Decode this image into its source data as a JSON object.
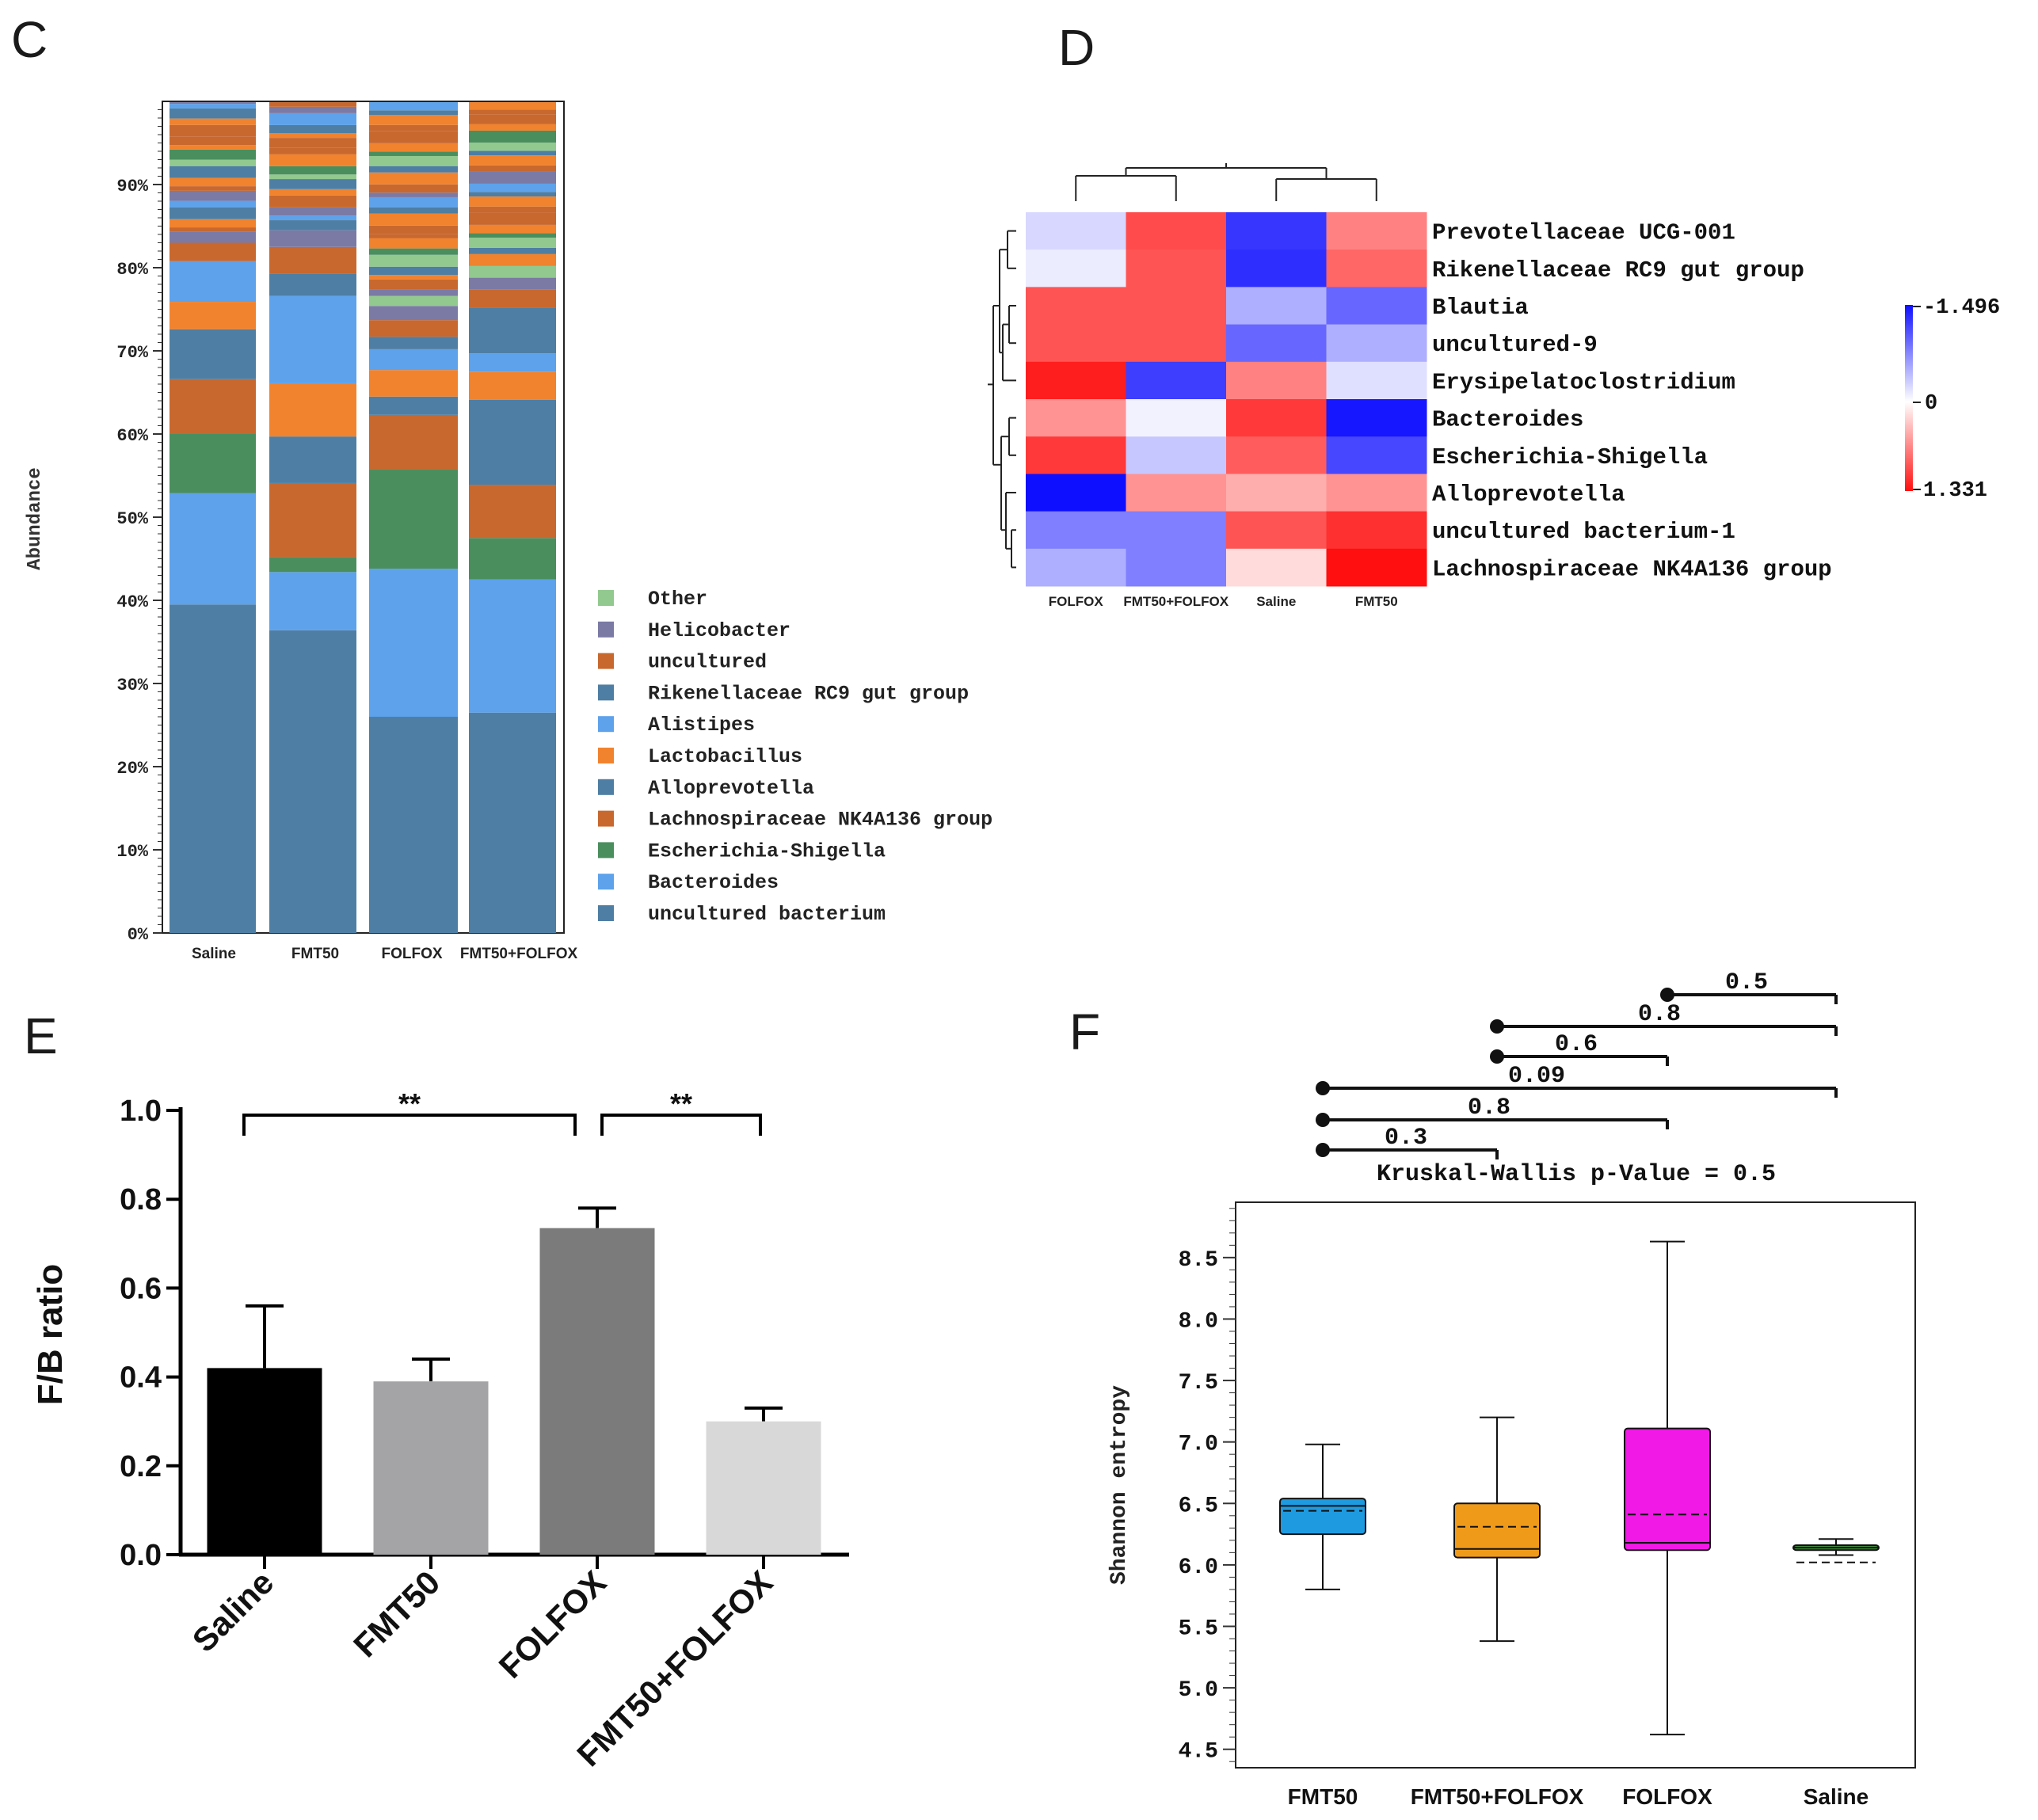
{
  "panels": {
    "c": "C",
    "d": "D",
    "e": "E",
    "f": "F"
  },
  "chart_data": [
    {
      "id": "C",
      "type": "bar",
      "stacked": true,
      "ylabel": "Abundance",
      "ylim": [
        0,
        100
      ],
      "ytick_labels": [
        "0%",
        "10%",
        "20%",
        "30%",
        "40%",
        "50%",
        "60%",
        "70%",
        "80%",
        "90%"
      ],
      "ytick_values": [
        0,
        10,
        20,
        30,
        40,
        50,
        60,
        70,
        80,
        90
      ],
      "categories": [
        "Saline",
        "FMT50",
        "FOLFOX",
        "FMT50+FOLFOX"
      ],
      "series": [
        {
          "name": "uncultured bacterium",
          "color": "#4e7ea3",
          "values": [
            39.5,
            36.4,
            26.0,
            26.5
          ]
        },
        {
          "name": "Bacteroides",
          "color": "#5da2ea",
          "values": [
            13.4,
            7.0,
            17.8,
            16.0
          ]
        },
        {
          "name": "Escherichia-Shigella",
          "color": "#4a8e5e",
          "values": [
            7.1,
            1.8,
            12.0,
            5.0
          ]
        },
        {
          "name": "Lachnospiraceae NK4A136 group",
          "color": "#c8682e",
          "values": [
            6.6,
            8.9,
            6.5,
            6.4
          ]
        },
        {
          "name": "Alloprevotella",
          "color": "#4e7ea3",
          "values": [
            6.0,
            5.6,
            2.2,
            10.2
          ]
        },
        {
          "name": "Lactobacillus",
          "color": "#f1832e",
          "values": [
            3.3,
            6.4,
            3.2,
            3.4
          ]
        },
        {
          "name": "Alistipes",
          "color": "#5da2ea",
          "values": [
            4.9,
            10.5,
            2.5,
            2.2
          ]
        },
        {
          "name": "Rikenellaceae RC9 gut group",
          "color": "#4e7ea3",
          "values": [
            0,
            2.7,
            1.5,
            5.5
          ]
        },
        {
          "name": "uncultured",
          "color": "#c8682e",
          "values": [
            2.2,
            3.2,
            2.0,
            2.2
          ]
        },
        {
          "name": "Helicobacter",
          "color": "#7b7aa5",
          "values": [
            1.3,
            2.0,
            1.7,
            1.4
          ]
        },
        {
          "name": "Other",
          "color": "#92c98f",
          "values": [
            0,
            0,
            1.2,
            1.4
          ]
        }
      ],
      "legend": [
        "Other",
        "Helicobacter",
        "uncultured",
        "Rikenellaceae RC9 gut group",
        "Alistipes",
        "Lactobacillus",
        "Alloprevotella",
        "Lachnospiraceae NK4A136 group",
        "Escherichia-Shigella",
        "Bacteroides",
        "uncultured bacterium"
      ]
    },
    {
      "id": "D",
      "type": "heatmap",
      "columns": [
        "FOLFOX",
        "FMT50+FOLFOX",
        "Saline",
        "FMT50"
      ],
      "rows": [
        "Prevotellaceae UCG-001",
        "Rikenellaceae RC9 gut group",
        "Blautia",
        "uncultured-9",
        "Erysipelatoclostridium",
        "Bacteroides",
        "Escherichia-Shigella",
        "Alloprevotella",
        "uncultured bacterium-1",
        "Lachnospiraceae NK4A136 group"
      ],
      "values": [
        [
          0.25,
          -1.0,
          1.25,
          -0.7
        ],
        [
          0.12,
          -0.95,
          1.3,
          -0.85
        ],
        [
          -0.95,
          -0.95,
          0.5,
          0.95
        ],
        [
          -0.95,
          -0.95,
          0.95,
          0.5
        ],
        [
          -1.25,
          1.2,
          -0.7,
          0.2
        ],
        [
          -0.6,
          0.08,
          -1.1,
          1.45
        ],
        [
          -1.1,
          0.35,
          -0.9,
          1.15
        ],
        [
          1.5,
          -0.6,
          -0.45,
          -0.6
        ],
        [
          0.8,
          0.8,
          -0.95,
          -1.15
        ],
        [
          0.5,
          0.8,
          -0.2,
          -1.33
        ]
      ],
      "scale": {
        "max_label": "1.496",
        "mid_label": "0",
        "min_label": "1.331",
        "max": 1.496,
        "min": -1.331
      }
    },
    {
      "id": "E",
      "type": "bar",
      "ylabel": "F/B ratio",
      "ylim": [
        0,
        1.0
      ],
      "ytick_labels": [
        "0.0",
        "0.2",
        "0.4",
        "0.6",
        "0.8",
        "1.0"
      ],
      "ytick_values": [
        0,
        0.2,
        0.4,
        0.6,
        0.8,
        1.0
      ],
      "categories": [
        "Saline",
        "FMT50",
        "FOLFOX",
        "FMT50+FOLFOX"
      ],
      "values": [
        0.42,
        0.39,
        0.735,
        0.3
      ],
      "errors": [
        0.14,
        0.05,
        0.045,
        0.03
      ],
      "colors": [
        "#000000",
        "#a4a4a6",
        "#7b7b7b",
        "#d8d8d8"
      ],
      "significance": [
        {
          "from": 0,
          "to": 2,
          "label": "**"
        },
        {
          "from": 2,
          "to": 3,
          "label": "**"
        }
      ]
    },
    {
      "id": "F",
      "type": "box",
      "title": "Kruskal-Wallis p-Value = 0.5",
      "ylabel": "Shannon entropy",
      "ylim": [
        4.35,
        8.95
      ],
      "ytick_labels": [
        "4.5",
        "5.0",
        "5.5",
        "6.0",
        "6.5",
        "7.0",
        "7.5",
        "8.0",
        "8.5"
      ],
      "ytick_values": [
        4.5,
        5.0,
        5.5,
        6.0,
        6.5,
        7.0,
        7.5,
        8.0,
        8.5
      ],
      "categories": [
        "FMT50",
        "FMT50+FOLFOX",
        "FOLFOX",
        "Saline"
      ],
      "boxes": [
        {
          "min": 5.8,
          "q1": 6.25,
          "median": 6.48,
          "mean": 6.44,
          "q3": 6.54,
          "max": 6.98,
          "color": "#1e9ae0"
        },
        {
          "min": 5.38,
          "q1": 6.06,
          "median": 6.13,
          "mean": 6.31,
          "q3": 6.5,
          "max": 7.2,
          "color": "#f09a1a"
        },
        {
          "min": 4.62,
          "q1": 6.12,
          "median": 6.18,
          "mean": 6.41,
          "q3": 7.11,
          "max": 8.63,
          "color": "#f019e6"
        },
        {
          "min": 6.08,
          "q1": 6.12,
          "median": 6.14,
          "mean": 6.02,
          "q3": 6.16,
          "max": 6.21,
          "color": "#3e8e3a"
        }
      ],
      "comparisons": [
        {
          "from": 2,
          "to": 3,
          "label": "0.5"
        },
        {
          "from": 1,
          "to": 3,
          "label": "0.8"
        },
        {
          "from": 1,
          "to": 2,
          "label": "0.6"
        },
        {
          "from": 0,
          "to": 3,
          "label": "0.09"
        },
        {
          "from": 0,
          "to": 2,
          "label": "0.8"
        },
        {
          "from": 0,
          "to": 1,
          "label": "0.3"
        }
      ]
    }
  ]
}
